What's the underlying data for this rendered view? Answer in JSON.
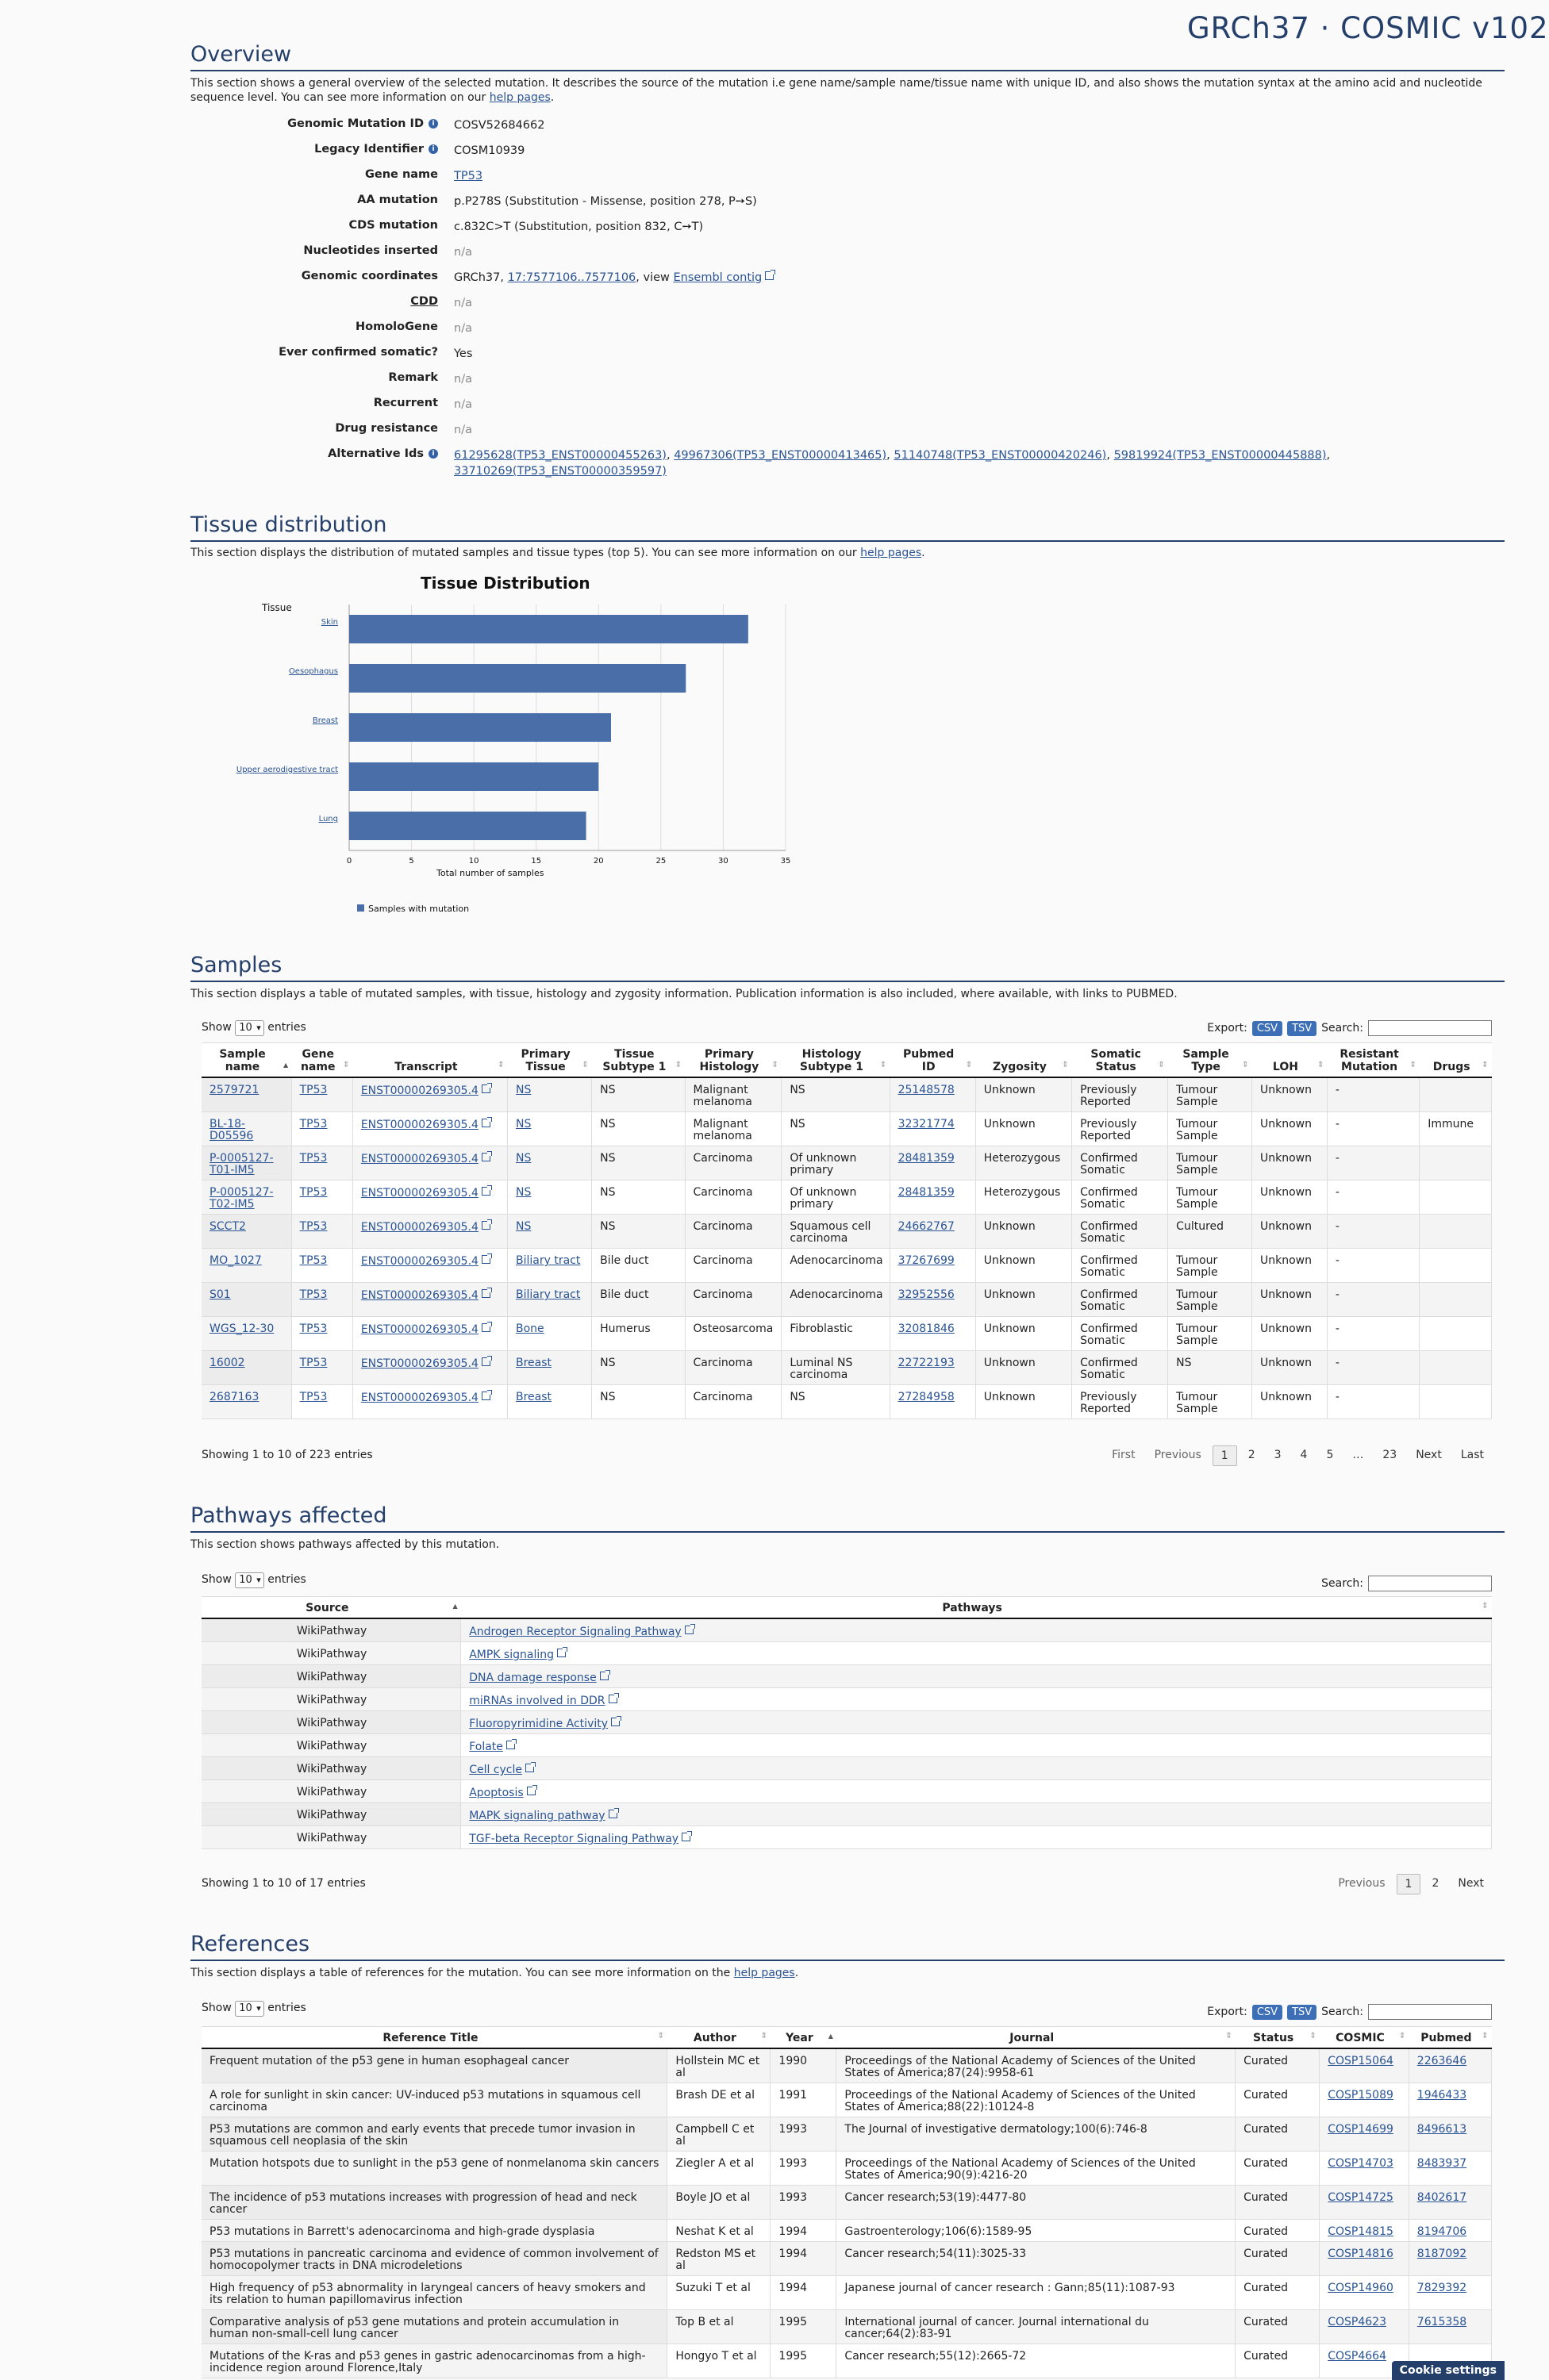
{
  "header": {
    "site_title": "GRCh37 · COSMIC v102"
  },
  "overview": {
    "title": "Overview",
    "description_pre": "This section shows a general overview of the selected mutation. It describes the source of the mutation i.e gene name/sample name/tissue name with unique ID, and also shows the mutation syntax at the amino acid and nucleotide sequence level. You can see more information on our ",
    "description_link": "help pages",
    "description_post": ".",
    "fields": [
      {
        "label": "Genomic Mutation ID",
        "value": "COSV52684662",
        "info": true
      },
      {
        "label": "Legacy Identifier",
        "value": "COSM10939",
        "info": true
      },
      {
        "label": "Gene name",
        "value": "TP53",
        "link": true
      },
      {
        "label": "AA mutation",
        "value": "p.P278S (Substitution - Missense, position 278, P➙S)"
      },
      {
        "label": "CDS mutation",
        "value": "c.832C>T (Substitution, position 832, C➙T)"
      },
      {
        "label": "Nucleotides inserted",
        "value": "n/a",
        "na": true
      },
      {
        "label": "Genomic coordinates",
        "value": ""
      },
      {
        "label": "CDD",
        "value": "n/a",
        "na": true
      },
      {
        "label": "HomoloGene",
        "value": "n/a",
        "na": true
      },
      {
        "label": "Ever confirmed somatic?",
        "value": "Yes"
      },
      {
        "label": "Remark",
        "value": "n/a",
        "na": true
      },
      {
        "label": "Recurrent",
        "value": "n/a",
        "na": true
      },
      {
        "label": "Drug resistance",
        "value": "n/a",
        "na": true
      },
      {
        "label": "Alternative Ids",
        "value": "",
        "info": true
      }
    ],
    "genomic_coords": {
      "prefix": "GRCh37, ",
      "link": "17:7577106..7577106",
      "mid": ", view ",
      "ensembl": "Ensembl contig"
    },
    "alt_ids": [
      "61295628(TP53_ENST00000455263)",
      "49967306(TP53_ENST00000413465)",
      "51140748(TP53_ENST00000420246)",
      "59819924(TP53_ENST00000445888)",
      "33710269(TP53_ENST00000359597)"
    ]
  },
  "tissue": {
    "title": "Tissue distribution",
    "description_pre": "This section displays the distribution of mutated samples and tissue types (top 5). You can see more information on our ",
    "description_link": "help pages",
    "description_post": "."
  },
  "chart_data": {
    "type": "bar",
    "orientation": "horizontal",
    "title": "Tissue Distribution",
    "ylabel": "Tissue",
    "xlabel": "Total number of samples",
    "categories": [
      "Skin",
      "Oesophagus",
      "Breast",
      "Upper aerodigestive tract",
      "Lung"
    ],
    "series": [
      {
        "name": "Samples with mutation",
        "values": [
          32,
          27,
          21,
          20,
          19
        ],
        "color": "#4a6ea8"
      }
    ],
    "xlim": [
      0,
      35
    ],
    "xticks": [
      "0",
      "5",
      "10",
      "15",
      "20",
      "25",
      "30",
      "35"
    ],
    "grid": true,
    "legend": "bottom-left"
  },
  "samples": {
    "title": "Samples",
    "description": "This section displays a table of mutated samples, with tissue, histology and zygosity information. Publication information is also included, where available, with links to PUBMED.",
    "show": "Show",
    "entries": "entries",
    "length": "10",
    "export": "Export:",
    "csv": "CSV",
    "tsv": "TSV",
    "search": "Search:",
    "columns": [
      "Sample name",
      "Gene name",
      "Transcript",
      "Primary Tissue",
      "Tissue Subtype 1",
      "Primary Histology",
      "Histology Subtype 1",
      "Pubmed ID",
      "Zygosity",
      "Somatic Status",
      "Sample Type",
      "LOH",
      "Resistant Mutation",
      "Drugs"
    ],
    "rows": [
      [
        "2579721",
        "TP53",
        "ENST00000269305.4",
        "NS",
        "NS",
        "Malignant melanoma",
        "NS",
        "25148578",
        "Unknown",
        "Previously Reported",
        "Tumour Sample",
        "Unknown",
        "-",
        ""
      ],
      [
        "BL-18-D05596",
        "TP53",
        "ENST00000269305.4",
        "NS",
        "NS",
        "Malignant melanoma",
        "NS",
        "32321774",
        "Unknown",
        "Previously Reported",
        "Tumour Sample",
        "Unknown",
        "-",
        "Immune"
      ],
      [
        "P-0005127-T01-IM5",
        "TP53",
        "ENST00000269305.4",
        "NS",
        "NS",
        "Carcinoma",
        "Of unknown primary",
        "28481359",
        "Heterozygous",
        "Confirmed Somatic",
        "Tumour Sample",
        "Unknown",
        "-",
        ""
      ],
      [
        "P-0005127-T02-IM5",
        "TP53",
        "ENST00000269305.4",
        "NS",
        "NS",
        "Carcinoma",
        "Of unknown primary",
        "28481359",
        "Heterozygous",
        "Confirmed Somatic",
        "Tumour Sample",
        "Unknown",
        "-",
        ""
      ],
      [
        "SCCT2",
        "TP53",
        "ENST00000269305.4",
        "NS",
        "NS",
        "Carcinoma",
        "Squamous cell carcinoma",
        "24662767",
        "Unknown",
        "Confirmed Somatic",
        "Cultured",
        "Unknown",
        "-",
        ""
      ],
      [
        "MO_1027",
        "TP53",
        "ENST00000269305.4",
        "Biliary tract",
        "Bile duct",
        "Carcinoma",
        "Adenocarcinoma",
        "37267699",
        "Unknown",
        "Confirmed Somatic",
        "Tumour Sample",
        "Unknown",
        "-",
        ""
      ],
      [
        "S01",
        "TP53",
        "ENST00000269305.4",
        "Biliary tract",
        "Bile duct",
        "Carcinoma",
        "Adenocarcinoma",
        "32952556",
        "Unknown",
        "Confirmed Somatic",
        "Tumour Sample",
        "Unknown",
        "-",
        ""
      ],
      [
        "WGS_12-30",
        "TP53",
        "ENST00000269305.4",
        "Bone",
        "Humerus",
        "Osteosarcoma",
        "Fibroblastic",
        "32081846",
        "Unknown",
        "Confirmed Somatic",
        "Tumour Sample",
        "Unknown",
        "-",
        ""
      ],
      [
        "16002",
        "TP53",
        "ENST00000269305.4",
        "Breast",
        "NS",
        "Carcinoma",
        "Luminal NS carcinoma",
        "22722193",
        "Unknown",
        "Confirmed Somatic",
        "NS",
        "Unknown",
        "-",
        ""
      ],
      [
        "2687163",
        "TP53",
        "ENST00000269305.4",
        "Breast",
        "NS",
        "Carcinoma",
        "NS",
        "27284958",
        "Unknown",
        "Previously Reported",
        "Tumour Sample",
        "Unknown",
        "-",
        ""
      ]
    ],
    "info": "Showing 1 to 10 of 223 entries",
    "pager": [
      "First",
      "Previous",
      "1",
      "2",
      "3",
      "4",
      "5",
      "…",
      "23",
      "Next",
      "Last"
    ]
  },
  "pathways": {
    "title": "Pathways affected",
    "description": "This section shows pathways affected by this mutation.",
    "show": "Show",
    "entries": "entries",
    "length": "10",
    "search": "Search:",
    "columns": [
      "Source",
      "Pathways"
    ],
    "rows": [
      [
        "WikiPathway",
        "Androgen Receptor Signaling Pathway"
      ],
      [
        "WikiPathway",
        "AMPK signaling"
      ],
      [
        "WikiPathway",
        "DNA damage response"
      ],
      [
        "WikiPathway",
        "miRNAs involved in DDR"
      ],
      [
        "WikiPathway",
        "Fluoropyrimidine Activity"
      ],
      [
        "WikiPathway",
        "Folate"
      ],
      [
        "WikiPathway",
        "Cell cycle"
      ],
      [
        "WikiPathway",
        "Apoptosis"
      ],
      [
        "WikiPathway",
        "MAPK signaling pathway"
      ],
      [
        "WikiPathway",
        "TGF-beta Receptor Signaling Pathway"
      ]
    ],
    "info": "Showing 1 to 10 of 17 entries",
    "pager": [
      "Previous",
      "1",
      "2",
      "Next"
    ]
  },
  "references": {
    "title": "References",
    "description_pre": "This section displays a table of references for the mutation. You can see more information on the ",
    "description_link": "help pages",
    "description_post": ".",
    "show": "Show",
    "entries": "entries",
    "length": "10",
    "export": "Export:",
    "csv": "CSV",
    "tsv": "TSV",
    "search": "Search:",
    "columns": [
      "Reference Title",
      "Author",
      "Year",
      "Journal",
      "Status",
      "COSMIC",
      "Pubmed"
    ],
    "rows": [
      [
        "Frequent mutation of the p53 gene in human esophageal cancer",
        "Hollstein MC et al",
        "1990",
        "Proceedings of the National Academy of Sciences of the United States of America;87(24):9958-61",
        "Curated",
        "COSP15064",
        "2263646"
      ],
      [
        "A role for sunlight in skin cancer: UV-induced p53 mutations in squamous cell carcinoma",
        "Brash DE et al",
        "1991",
        "Proceedings of the National Academy of Sciences of the United States of America;88(22):10124-8",
        "Curated",
        "COSP15089",
        "1946433"
      ],
      [
        "P53 mutations are common and early events that precede tumor invasion in squamous cell neoplasia of the skin",
        "Campbell C et al",
        "1993",
        "The Journal of investigative dermatology;100(6):746-8",
        "Curated",
        "COSP14699",
        "8496613"
      ],
      [
        "Mutation hotspots due to sunlight in the p53 gene of nonmelanoma skin cancers",
        "Ziegler A et al",
        "1993",
        "Proceedings of the National Academy of Sciences of the United States of America;90(9):4216-20",
        "Curated",
        "COSP14703",
        "8483937"
      ],
      [
        "The incidence of p53 mutations increases with progression of head and neck cancer",
        "Boyle JO et al",
        "1993",
        "Cancer research;53(19):4477-80",
        "Curated",
        "COSP14725",
        "8402617"
      ],
      [
        "P53 mutations in Barrett's adenocarcinoma and high-grade dysplasia",
        "Neshat K et al",
        "1994",
        "Gastroenterology;106(6):1589-95",
        "Curated",
        "COSP14815",
        "8194706"
      ],
      [
        "P53 mutations in pancreatic carcinoma and evidence of common involvement of homocopolymer tracts in DNA microdeletions",
        "Redston MS et al",
        "1994",
        "Cancer research;54(11):3025-33",
        "Curated",
        "COSP14816",
        "8187092"
      ],
      [
        "High frequency of p53 abnormality in laryngeal cancers of heavy smokers and its relation to human papillomavirus infection",
        "Suzuki T et al",
        "1994",
        "Japanese journal of cancer research : Gann;85(11):1087-93",
        "Curated",
        "COSP14960",
        "7829392"
      ],
      [
        "Comparative analysis of p53 gene mutations and protein accumulation in human non-small-cell lung cancer",
        "Top B et al",
        "1995",
        "International journal of cancer. Journal international du cancer;64(2):83-91",
        "Curated",
        "COSP4623",
        "7615358"
      ],
      [
        "Mutations of the K-ras and p53 genes in gastric adenocarcinomas from a high-incidence region around Florence,Italy",
        "Hongyo T et al",
        "1995",
        "Cancer research;55(12):2665-72",
        "Curated",
        "COSP4664",
        ""
      ]
    ]
  },
  "cookie": {
    "label": "Cookie settings"
  }
}
